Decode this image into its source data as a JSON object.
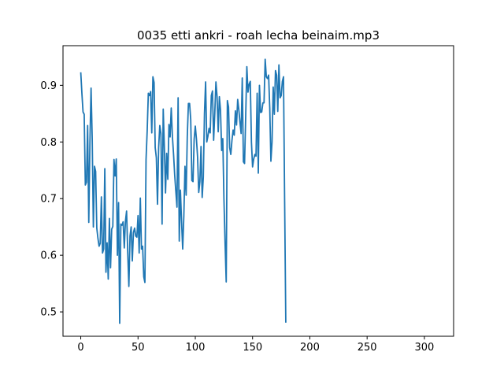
{
  "chart_data": {
    "type": "line",
    "title": "0035 etti ankri - roah lecha beinaim.mp3",
    "xlabel": "",
    "ylabel": "",
    "xlim": [
      -15.5,
      325.5
    ],
    "ylim": [
      0.457,
      0.97
    ],
    "x_ticks": [
      0,
      50,
      100,
      150,
      200,
      250,
      300
    ],
    "y_ticks": [
      0.5,
      0.6,
      0.7,
      0.8,
      0.9
    ],
    "y_tick_labels": [
      "0.5",
      "0.6",
      "0.7",
      "0.8",
      "0.9"
    ],
    "grid": false,
    "line_color": "#1f77b4",
    "series": [
      {
        "values": [
          0.923,
          0.886,
          0.853,
          0.849,
          0.724,
          0.729,
          0.829,
          0.658,
          0.798,
          0.895,
          0.806,
          0.65,
          0.757,
          0.748,
          0.648,
          0.63,
          0.616,
          0.621,
          0.703,
          0.604,
          0.611,
          0.753,
          0.57,
          0.622,
          0.558,
          0.665,
          0.578,
          0.646,
          0.651,
          0.769,
          0.74,
          0.77,
          0.6,
          0.693,
          0.48,
          0.655,
          0.653,
          0.659,
          0.613,
          0.66,
          0.678,
          0.606,
          0.545,
          0.634,
          0.65,
          0.59,
          0.64,
          0.648,
          0.634,
          0.632,
          0.67,
          0.604,
          0.701,
          0.611,
          0.616,
          0.562,
          0.552,
          0.769,
          0.82,
          0.886,
          0.882,
          0.889,
          0.816,
          0.915,
          0.905,
          0.79,
          0.772,
          0.69,
          0.79,
          0.829,
          0.815,
          0.655,
          0.858,
          0.79,
          0.71,
          0.78,
          0.734,
          0.831,
          0.809,
          0.86,
          0.81,
          0.779,
          0.742,
          0.713,
          0.685,
          0.878,
          0.625,
          0.715,
          0.66,
          0.611,
          0.67,
          0.757,
          0.706,
          0.81,
          0.868,
          0.868,
          0.84,
          0.732,
          0.73,
          0.805,
          0.828,
          0.805,
          0.773,
          0.711,
          0.73,
          0.792,
          0.702,
          0.738,
          0.85,
          0.906,
          0.8,
          0.81,
          0.824,
          0.816,
          0.882,
          0.89,
          0.803,
          0.85,
          0.906,
          0.88,
          0.818,
          0.88,
          0.856,
          0.785,
          0.806,
          0.7,
          0.621,
          0.553,
          0.873,
          0.862,
          0.79,
          0.778,
          0.803,
          0.821,
          0.812,
          0.855,
          0.83,
          0.875,
          0.857,
          0.835,
          0.815,
          0.913,
          0.765,
          0.762,
          0.846,
          0.933,
          0.888,
          0.902,
          0.907,
          0.8,
          0.756,
          0.77,
          0.778,
          0.775,
          0.886,
          0.745,
          0.9,
          0.852,
          0.853,
          0.869,
          0.869,
          0.946,
          0.915,
          0.912,
          0.918,
          0.86,
          0.766,
          0.8,
          0.897,
          0.849,
          0.926,
          0.918,
          0.854,
          0.936,
          0.878,
          0.882,
          0.907,
          0.915,
          0.695,
          0.481
        ]
      }
    ]
  }
}
